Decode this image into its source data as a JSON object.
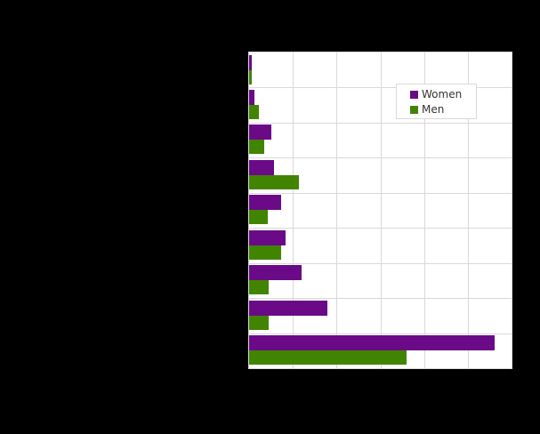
{
  "chart_data": {
    "type": "bar",
    "orientation": "horizontal",
    "title": "",
    "xlabel": "",
    "ylabel": "",
    "categories": [
      "",
      "",
      "",
      "",
      "",
      "",
      "",
      "",
      ""
    ],
    "series": [
      {
        "name": "Women",
        "color": "#6a0a87",
        "values": [
          0.06,
          0.12,
          0.5,
          0.57,
          0.73,
          0.83,
          1.21,
          1.78,
          5.62
        ]
      },
      {
        "name": "Men",
        "color": "#418400",
        "values": [
          0.06,
          0.22,
          0.34,
          1.13,
          0.42,
          0.73,
          0.44,
          0.44,
          3.6
        ]
      }
    ],
    "xlim": [
      0,
      6
    ],
    "x_gridlines": [
      0,
      1,
      2,
      3,
      4,
      5,
      6
    ],
    "grid": true,
    "legend_position": "upper-right-inside",
    "note": "Axis tick labels and category labels are rendered black on black background and are not legible; values expressed in gridline units."
  },
  "legend": {
    "items": [
      {
        "label": "Women",
        "color": "#6a0a87"
      },
      {
        "label": "Men",
        "color": "#418400"
      }
    ]
  },
  "colors": {
    "background": "#000000",
    "plot_background": "#ffffff",
    "grid": "#d9d9d9",
    "women": "#6a0a87",
    "men": "#418400"
  }
}
